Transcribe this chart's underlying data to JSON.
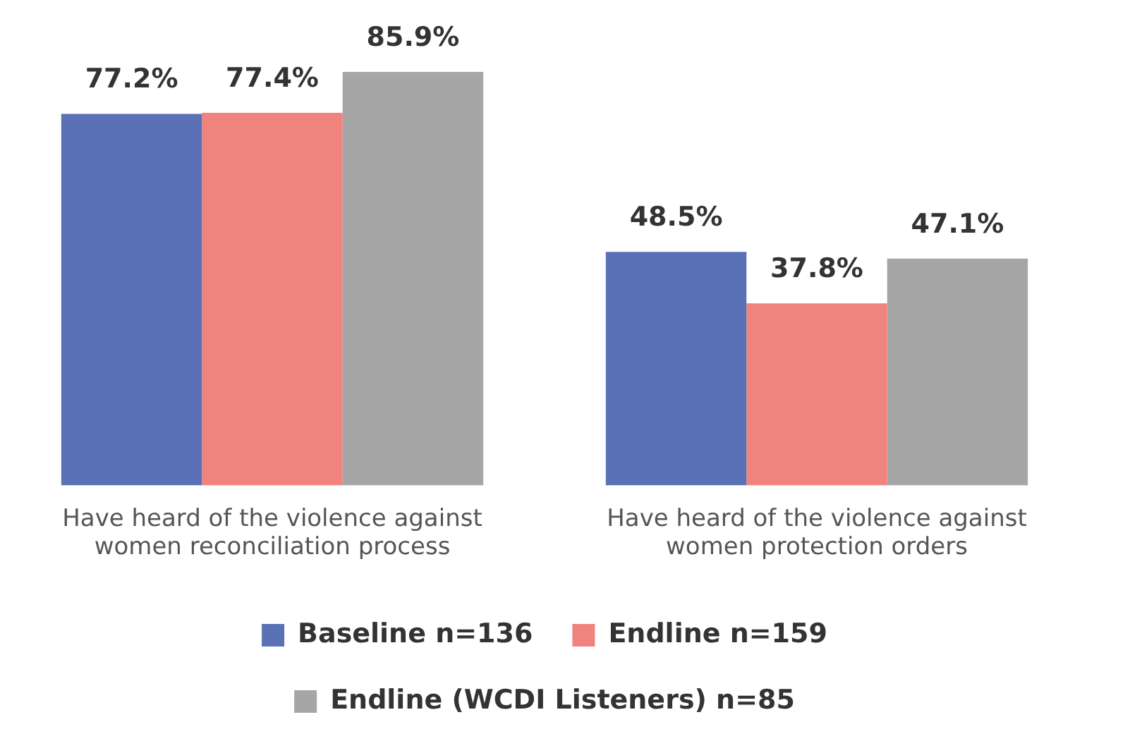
{
  "chart_data": {
    "type": "bar",
    "categories": [
      [
        "Have heard of the violence against",
        "women reconciliation process"
      ],
      [
        "Have heard of the violence against",
        "women protection orders"
      ]
    ],
    "series": [
      {
        "name": "Baseline n=136",
        "color": "#5a72b5",
        "values": [
          77.2,
          48.5
        ],
        "value_labels": [
          "77.2%",
          "48.5%"
        ]
      },
      {
        "name": "Endline n=159",
        "color": "#f0837d",
        "values": [
          77.4,
          37.8
        ],
        "value_labels": [
          "77.4%",
          "37.8%"
        ]
      },
      {
        "name": "Endline (WCDI Listeners) n=85",
        "color": "#a6a6a6",
        "values": [
          85.9,
          47.1
        ],
        "value_labels": [
          "85.9%",
          "47.1%"
        ]
      }
    ],
    "grid": false,
    "legend": "bottom"
  }
}
